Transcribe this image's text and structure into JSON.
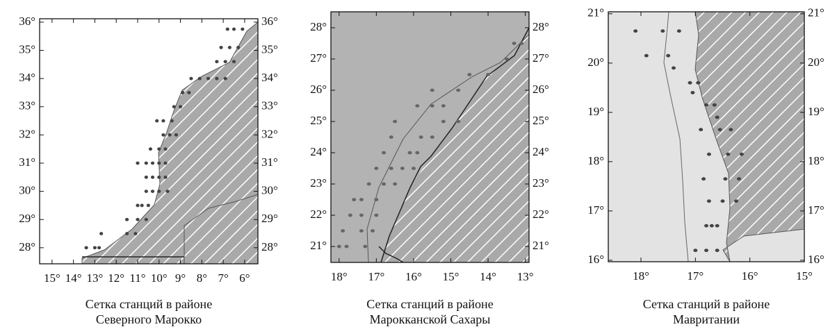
{
  "panels": [
    {
      "xlim": [
        -15.58,
        -5.38
      ],
      "ylim": [
        27.43,
        36.12
      ],
      "xticks": [
        {
          "value": -15,
          "label": "15°"
        },
        {
          "value": -14,
          "label": "14°"
        },
        {
          "value": -13,
          "label": "13°"
        },
        {
          "value": -12,
          "label": "12°"
        },
        {
          "value": -11,
          "label": "11°"
        },
        {
          "value": -10,
          "label": "10°"
        },
        {
          "value": -9,
          "label": "9°"
        },
        {
          "value": -8,
          "label": "8°"
        },
        {
          "value": -7,
          "label": "7°"
        },
        {
          "value": -6,
          "label": "6°"
        }
      ],
      "yticks": [
        {
          "value": 28,
          "label": "28°"
        },
        {
          "value": 29,
          "label": "29°"
        },
        {
          "value": 30,
          "label": "30°"
        },
        {
          "value": 31,
          "label": "31°"
        },
        {
          "value": 32,
          "label": "32°"
        },
        {
          "value": 33,
          "label": "33°"
        },
        {
          "value": 34,
          "label": "34°"
        },
        {
          "value": 35,
          "label": "35°"
        },
        {
          "value": 36,
          "label": "36°"
        }
      ],
      "stations": [
        [
          -6.8,
          35.75
        ],
        [
          -6.5,
          35.75
        ],
        [
          -6.1,
          35.75
        ],
        [
          -7.1,
          35.1
        ],
        [
          -6.7,
          35.1
        ],
        [
          -6.3,
          35.1
        ],
        [
          -7.3,
          34.6
        ],
        [
          -6.9,
          34.6
        ],
        [
          -6.5,
          34.6
        ],
        [
          -8.5,
          34.0
        ],
        [
          -8.1,
          34.0
        ],
        [
          -7.7,
          34.0
        ],
        [
          -7.3,
          34.0
        ],
        [
          -6.9,
          34.0
        ],
        [
          -8.9,
          33.5
        ],
        [
          -8.6,
          33.5
        ],
        [
          -9.3,
          33.0
        ],
        [
          -9.0,
          33.0
        ],
        [
          -10.1,
          32.5
        ],
        [
          -9.8,
          32.5
        ],
        [
          -9.4,
          32.5
        ],
        [
          -9.8,
          32.0
        ],
        [
          -9.5,
          32.0
        ],
        [
          -9.2,
          32.0
        ],
        [
          -10.4,
          31.5
        ],
        [
          -10.0,
          31.5
        ],
        [
          -9.7,
          31.5
        ],
        [
          -11.0,
          31.0
        ],
        [
          -10.6,
          31.0
        ],
        [
          -10.3,
          31.0
        ],
        [
          -10.0,
          31.0
        ],
        [
          -9.7,
          31.0
        ],
        [
          -10.6,
          30.5
        ],
        [
          -10.3,
          30.5
        ],
        [
          -10.0,
          30.5
        ],
        [
          -9.7,
          30.5
        ],
        [
          -10.6,
          30.0
        ],
        [
          -10.3,
          30.0
        ],
        [
          -10.0,
          30.0
        ],
        [
          -9.6,
          30.0
        ],
        [
          -11.0,
          29.5
        ],
        [
          -10.8,
          29.5
        ],
        [
          -10.5,
          29.5
        ],
        [
          -11.5,
          29.0
        ],
        [
          -11.0,
          29.0
        ],
        [
          -10.6,
          29.0
        ],
        [
          -12.7,
          28.5
        ],
        [
          -11.5,
          28.5
        ],
        [
          -11.1,
          28.5
        ],
        [
          -13.4,
          28.0
        ],
        [
          -13.0,
          28.0
        ],
        [
          -12.8,
          28.0
        ]
      ],
      "caption": [
        "Сетка станций в районе",
        "Северного Марокко"
      ]
    },
    {
      "xlim": [
        -18.22,
        -12.9
      ],
      "ylim": [
        20.49,
        28.51
      ],
      "xticks": [
        {
          "value": -18,
          "label": "18°"
        },
        {
          "value": -17,
          "label": "17°"
        },
        {
          "value": -16,
          "label": "16°"
        },
        {
          "value": -15,
          "label": "15°"
        },
        {
          "value": -14,
          "label": "14°"
        },
        {
          "value": -13,
          "label": "13°"
        }
      ],
      "yticks": [
        {
          "value": 21,
          "label": "21°"
        },
        {
          "value": 22,
          "label": "22°"
        },
        {
          "value": 23,
          "label": "23°"
        },
        {
          "value": 24,
          "label": "24°"
        },
        {
          "value": 25,
          "label": "25°"
        },
        {
          "value": 26,
          "label": "26°"
        },
        {
          "value": 27,
          "label": "27°"
        },
        {
          "value": 28,
          "label": "28°"
        }
      ],
      "stations": [
        [
          -13.3,
          27.5
        ],
        [
          -13.1,
          27.5
        ],
        [
          -13.5,
          27.0
        ],
        [
          -14.5,
          26.5
        ],
        [
          -14.0,
          26.5
        ],
        [
          -15.5,
          26.0
        ],
        [
          -14.8,
          26.0
        ],
        [
          -15.9,
          25.5
        ],
        [
          -15.5,
          25.5
        ],
        [
          -15.2,
          25.5
        ],
        [
          -16.5,
          25.0
        ],
        [
          -15.2,
          25.0
        ],
        [
          -14.8,
          25.0
        ],
        [
          -16.6,
          24.5
        ],
        [
          -15.8,
          24.5
        ],
        [
          -15.5,
          24.5
        ],
        [
          -16.8,
          24.0
        ],
        [
          -16.1,
          24.0
        ],
        [
          -15.9,
          24.0
        ],
        [
          -17.0,
          23.5
        ],
        [
          -16.6,
          23.5
        ],
        [
          -16.3,
          23.5
        ],
        [
          -16.0,
          23.5
        ],
        [
          -17.2,
          23.0
        ],
        [
          -16.8,
          23.0
        ],
        [
          -16.5,
          23.0
        ],
        [
          -17.6,
          22.5
        ],
        [
          -17.4,
          22.5
        ],
        [
          -17.0,
          22.5
        ],
        [
          -17.7,
          22.0
        ],
        [
          -17.4,
          22.0
        ],
        [
          -17.0,
          22.0
        ],
        [
          -17.9,
          21.5
        ],
        [
          -17.4,
          21.5
        ],
        [
          -17.1,
          21.5
        ],
        [
          -18.0,
          21.0
        ],
        [
          -17.8,
          21.0
        ],
        [
          -17.3,
          21.0
        ]
      ],
      "caption": [
        "Сетка станций в районе",
        "Марокканской Сахары"
      ]
    },
    {
      "xlim": [
        -18.6,
        -15.0
      ],
      "ylim": [
        15.97,
        21.04
      ],
      "xticks": [
        {
          "value": -18,
          "label": "18°"
        },
        {
          "value": -17,
          "label": "17°"
        },
        {
          "value": -16,
          "label": "16°"
        },
        {
          "value": -15,
          "label": "15°"
        }
      ],
      "yticks": [
        {
          "value": 16,
          "label": "16°"
        },
        {
          "value": 17,
          "label": "17°"
        },
        {
          "value": 18,
          "label": "18°"
        },
        {
          "value": 19,
          "label": "19°"
        },
        {
          "value": 20,
          "label": "20°"
        },
        {
          "value": 21,
          "label": "21°"
        }
      ],
      "stations": [
        [
          -18.1,
          20.65
        ],
        [
          -17.6,
          20.65
        ],
        [
          -17.3,
          20.65
        ],
        [
          -17.9,
          20.15
        ],
        [
          -17.5,
          20.15
        ],
        [
          -17.4,
          19.9
        ],
        [
          -17.1,
          19.6
        ],
        [
          -16.95,
          19.6
        ],
        [
          -17.05,
          19.4
        ],
        [
          -16.8,
          19.15
        ],
        [
          -16.65,
          19.15
        ],
        [
          -16.6,
          18.9
        ],
        [
          -16.9,
          18.65
        ],
        [
          -16.55,
          18.65
        ],
        [
          -16.35,
          18.65
        ],
        [
          -16.75,
          18.15
        ],
        [
          -16.4,
          18.15
        ],
        [
          -16.15,
          18.15
        ],
        [
          -16.85,
          17.65
        ],
        [
          -16.45,
          17.65
        ],
        [
          -16.2,
          17.65
        ],
        [
          -16.75,
          17.2
        ],
        [
          -16.5,
          17.2
        ],
        [
          -16.25,
          17.2
        ],
        [
          -16.8,
          16.7
        ],
        [
          -16.7,
          16.7
        ],
        [
          -16.6,
          16.7
        ],
        [
          -17.0,
          16.2
        ],
        [
          -16.8,
          16.2
        ],
        [
          -16.6,
          16.2
        ]
      ],
      "caption": [
        "Сетка станций в районе",
        "Мавритании"
      ]
    }
  ]
}
